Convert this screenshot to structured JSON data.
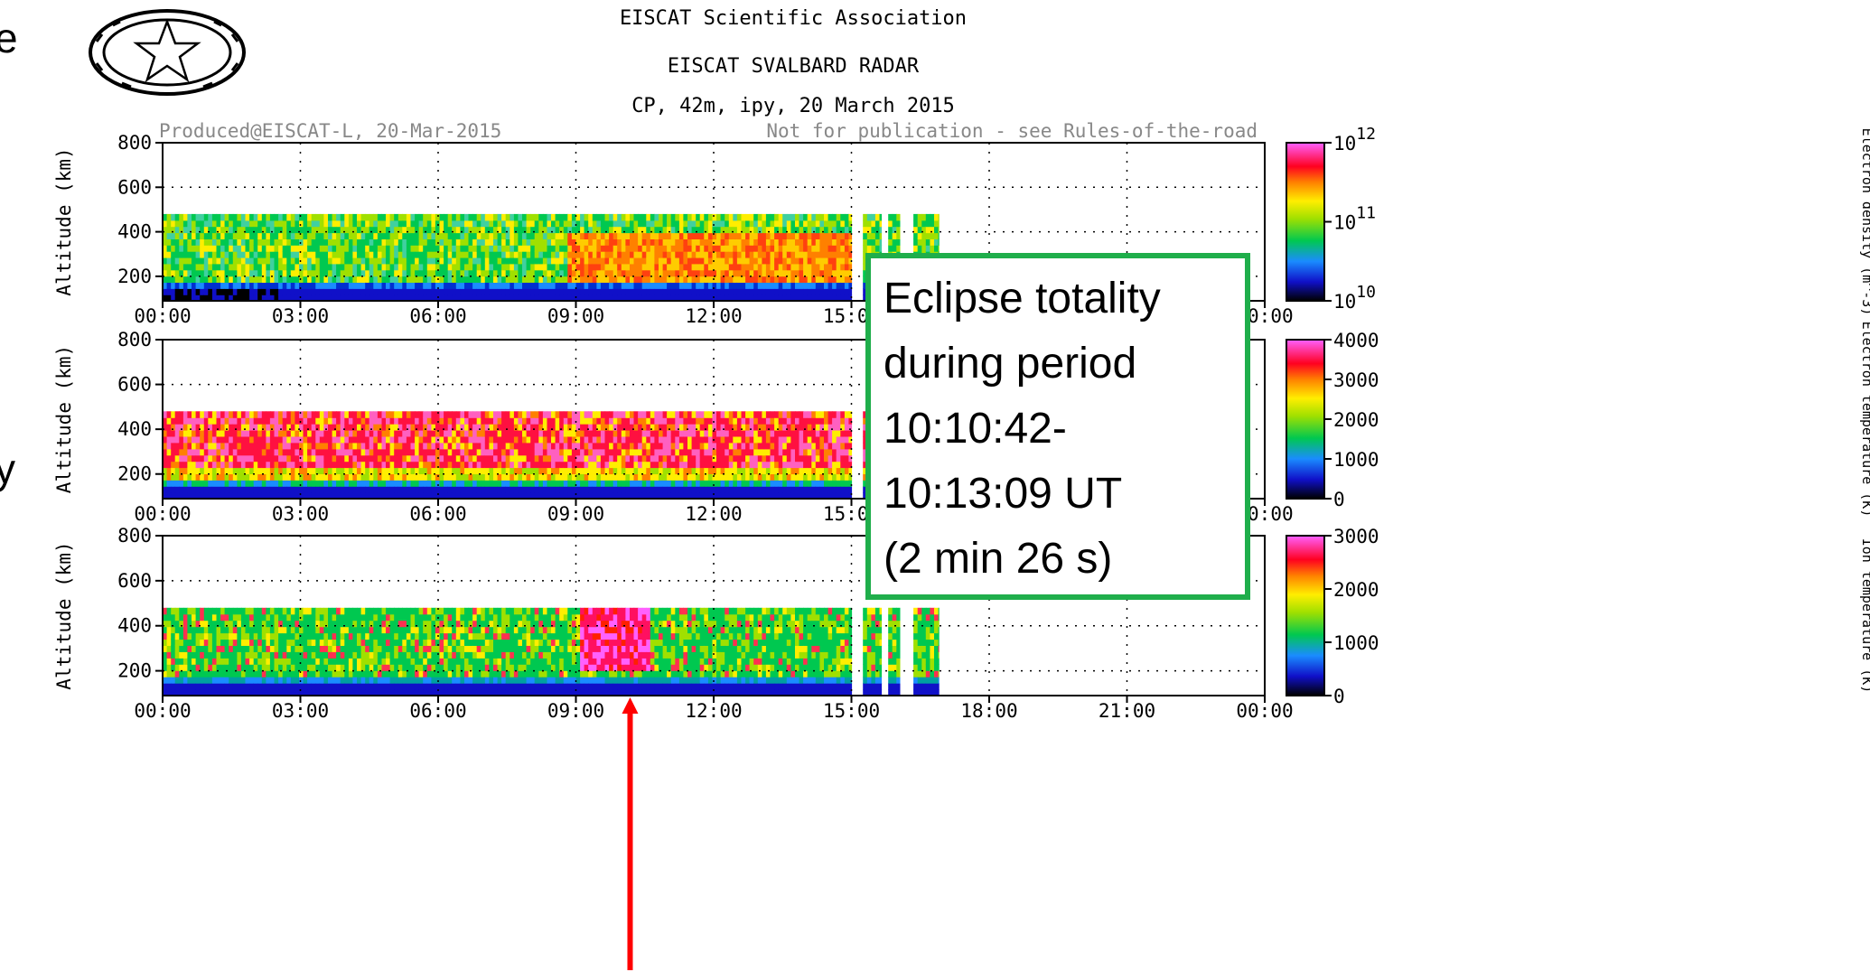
{
  "header": {
    "association": "EISCAT Scientific Association",
    "radar": "EISCAT SVALBARD RADAR",
    "experiment": "CP, 42m, ipy, 20 March 2015",
    "produced": "Produced@EISCAT-L, 20-Mar-2015",
    "notice": "Not for publication - see Rules-of-the-road"
  },
  "left_edge_chars": [
    "e",
    "y"
  ],
  "callout": {
    "lines": [
      "Eclipse totality",
      "during period",
      "10:10:42-",
      "10:13:09 UT",
      "(2 min 26 s)"
    ],
    "border_color": "#1fae4b"
  },
  "marker": {
    "color": "#ff0000",
    "time_hours": 10.18
  },
  "chart_data": [
    {
      "type": "heatmap",
      "panel": "electron density",
      "ylabel": "Altitude (km)",
      "xlim": [
        0,
        24
      ],
      "ylim": [
        90,
        800
      ],
      "x_ticks": [
        "00:00",
        "03:00",
        "06:00",
        "09:00",
        "12:00",
        "15:00",
        "18:00",
        "21:00",
        "00:00"
      ],
      "y_ticks": [
        200,
        400,
        600,
        800
      ],
      "colorbar": {
        "scale": "log",
        "ticks": [
          "10^10",
          "10^11",
          "10^12"
        ],
        "range": [
          10,
          12
        ]
      },
      "side_label": "Electron density (m^-3)",
      "data_altitude_km": [
        90,
        480
      ],
      "time_segments_h": [
        [
          0,
          15.0
        ],
        [
          15.25,
          15.65
        ],
        [
          15.8,
          16.05
        ],
        [
          16.35,
          16.9
        ]
      ]
    },
    {
      "type": "heatmap",
      "panel": "electron temperature",
      "ylabel": "Altitude (km)",
      "xlim": [
        0,
        24
      ],
      "ylim": [
        90,
        800
      ],
      "x_ticks": [
        "00:00",
        "03:00",
        "06:00",
        "09:00",
        "12:00",
        "15:00",
        "18:00",
        "21:00",
        "00:00"
      ],
      "y_ticks": [
        200,
        400,
        600,
        800
      ],
      "colorbar": {
        "scale": "linear",
        "ticks": [
          0,
          1000,
          2000,
          3000,
          4000
        ],
        "range": [
          0,
          4000
        ]
      },
      "side_label": "Electron temperature (K)",
      "data_altitude_km": [
        90,
        480
      ],
      "time_segments_h": [
        [
          0,
          15.0
        ],
        [
          15.25,
          15.65
        ],
        [
          15.8,
          16.05
        ],
        [
          16.35,
          16.9
        ]
      ]
    },
    {
      "type": "heatmap",
      "panel": "ion temperature",
      "ylabel": "Altitude (km)",
      "xlim": [
        0,
        24
      ],
      "ylim": [
        90,
        800
      ],
      "x_ticks": [
        "00:00",
        "03:00",
        "06:00",
        "09:00",
        "12:00",
        "15:00",
        "18:00",
        "21:00",
        "00:00"
      ],
      "y_ticks": [
        200,
        400,
        600,
        800
      ],
      "colorbar": {
        "scale": "linear",
        "ticks": [
          0,
          1000,
          2000,
          3000
        ],
        "range": [
          0,
          3000
        ]
      },
      "side_label": "Ion temperature (K)",
      "data_altitude_km": [
        90,
        480
      ],
      "time_segments_h": [
        [
          0,
          15.0
        ],
        [
          15.25,
          15.65
        ],
        [
          15.8,
          16.05
        ],
        [
          16.35,
          16.9
        ]
      ]
    }
  ]
}
